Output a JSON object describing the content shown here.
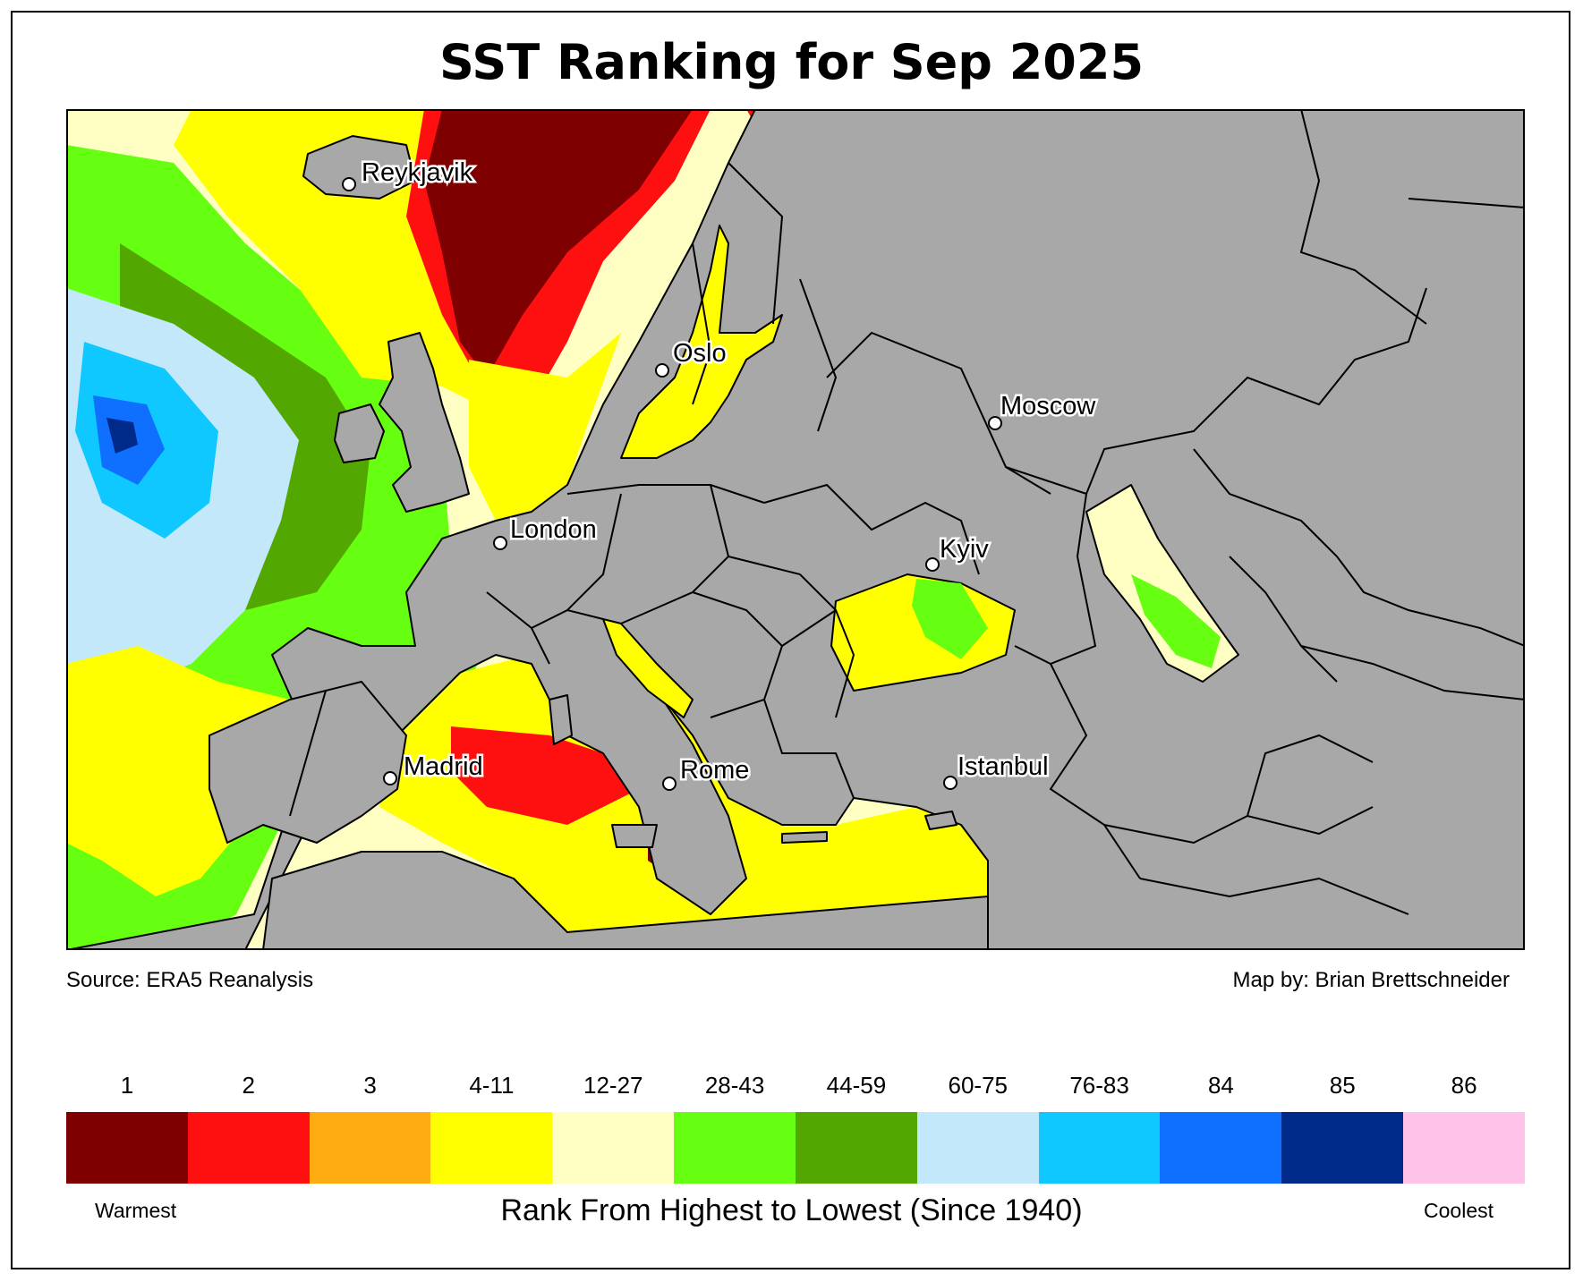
{
  "title": "SST Ranking for Sep 2025",
  "source": "Source: ERA5 Reanalysis",
  "credit": "Map by: Brian Brettschneider",
  "legend": {
    "axis_title": "Rank From Highest to Lowest (Since 1940)",
    "warm_label": "Warmest",
    "cool_label": "Coolest",
    "classes": [
      {
        "label": "1",
        "color": "#7f0000"
      },
      {
        "label": "2",
        "color": "#ff1010"
      },
      {
        "label": "3",
        "color": "#ffab12"
      },
      {
        "label": "4-11",
        "color": "#ffff00"
      },
      {
        "label": "12-27",
        "color": "#ffffc4"
      },
      {
        "label": "28-43",
        "color": "#66ff12"
      },
      {
        "label": "44-59",
        "color": "#52a800"
      },
      {
        "label": "60-75",
        "color": "#c2e8fa"
      },
      {
        "label": "76-83",
        "color": "#0fc8ff"
      },
      {
        "label": "84",
        "color": "#0f70ff"
      },
      {
        "label": "85",
        "color": "#002a8a"
      },
      {
        "label": "86",
        "color": "#ffc2e8"
      }
    ]
  },
  "map": {
    "land_color": "#a8a8a8",
    "cities": [
      {
        "name": "Reykjavik"
      },
      {
        "name": "Oslo"
      },
      {
        "name": "Moscow"
      },
      {
        "name": "London"
      },
      {
        "name": "Kyiv"
      },
      {
        "name": "Madrid"
      },
      {
        "name": "Rome"
      },
      {
        "name": "Istanbul"
      }
    ]
  }
}
